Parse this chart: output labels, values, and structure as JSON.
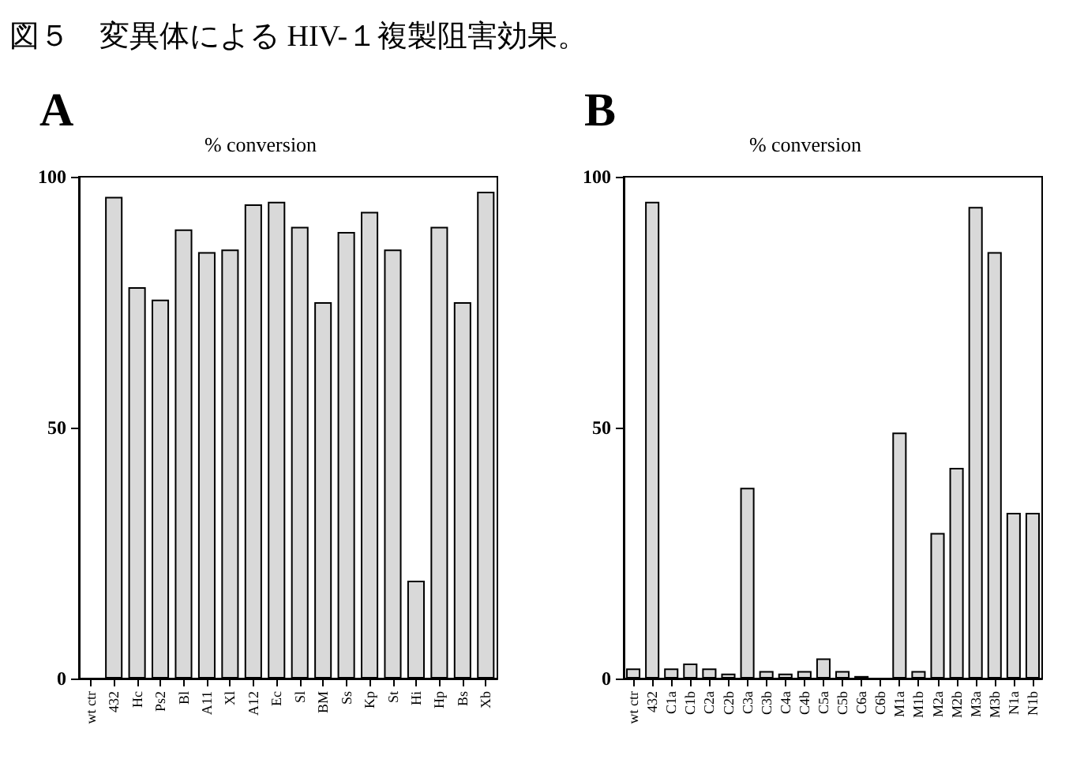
{
  "chart_data": [
    {
      "type": "bar",
      "title": "A",
      "subtitle": "% conversion",
      "annotations": [
        "図５　変異体による HIV-１複製阻害効果。"
      ],
      "categories": [
        "wt ctr",
        "432",
        "Hc",
        "Ps2",
        "Bl",
        "A11",
        "Xl",
        "A12",
        "Ec",
        "Sl",
        "BM",
        "Ss",
        "Kp",
        "St",
        "Hi",
        "Hp",
        "Bs",
        "Xb"
      ],
      "values": [
        null,
        96,
        78,
        75.5,
        89.5,
        85,
        85.5,
        94.5,
        95,
        90,
        75,
        89,
        93,
        85.5,
        19.5,
        90,
        75,
        97
      ],
      "color": "#d9d9d9",
      "ylim": [
        0,
        100
      ],
      "yticks": [
        0,
        50,
        100
      ],
      "grid": false
    },
    {
      "type": "bar",
      "title": "B",
      "subtitle": "% conversion",
      "categories": [
        "wt ctr",
        "432",
        "C1a",
        "C1b",
        "C2a",
        "C2b",
        "C3a",
        "C3b",
        "C4a",
        "C4b",
        "C5a",
        "C5b",
        "C6a",
        "C6b",
        "M1a",
        "M1b",
        "M2a",
        "M2b",
        "M3a",
        "M3b",
        "N1a",
        "N1b"
      ],
      "values": [
        2,
        95,
        2,
        3,
        2,
        1,
        38,
        1.5,
        1,
        1.5,
        4,
        1.5,
        0.5,
        null,
        49,
        1.5,
        29,
        42,
        94,
        85,
        33,
        33
      ],
      "color": "#d9d9d9",
      "ylim": [
        0,
        100
      ],
      "yticks": [
        0,
        50,
        100
      ],
      "grid": false
    }
  ]
}
